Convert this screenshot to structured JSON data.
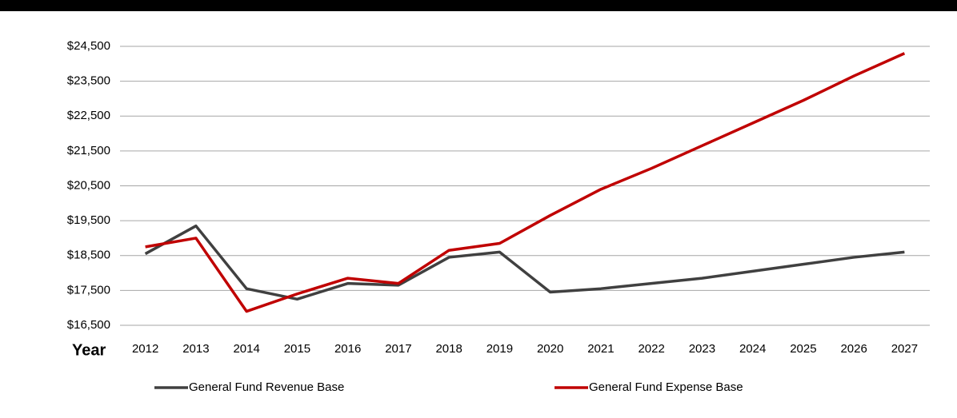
{
  "chart_data": {
    "type": "line",
    "x_label": "Year",
    "categories": [
      "2012",
      "2013",
      "2014",
      "2015",
      "2016",
      "2017",
      "2018",
      "2019",
      "2020",
      "2021",
      "2022",
      "2023",
      "2024",
      "2025",
      "2026",
      "2027"
    ],
    "series": [
      {
        "name": "General Fund Revenue Base",
        "color": "#404040",
        "values": [
          18550,
          19350,
          17550,
          17250,
          17700,
          17650,
          18450,
          18600,
          17450,
          17550,
          17700,
          17850,
          18050,
          18250,
          18450,
          18600
        ]
      },
      {
        "name": "General Fund Expense Base",
        "color": "#c00000",
        "values": [
          18750,
          19000,
          16900,
          17400,
          17850,
          17700,
          18650,
          18850,
          19650,
          20400,
          21000,
          21650,
          22300,
          22950,
          23650,
          24300
        ]
      }
    ],
    "ylim": [
      16500,
      24500
    ],
    "yticks": [
      {
        "value": 16500,
        "label": "$16,500"
      },
      {
        "value": 17500,
        "label": "$17,500"
      },
      {
        "value": 18500,
        "label": "$18,500"
      },
      {
        "value": 19500,
        "label": "$19,500"
      },
      {
        "value": 20500,
        "label": "$20,500"
      },
      {
        "value": 21500,
        "label": "$21,500"
      },
      {
        "value": 22500,
        "label": "$22,500"
      },
      {
        "value": 23500,
        "label": "$23,500"
      },
      {
        "value": 24500,
        "label": "$24,500"
      }
    ],
    "grid": true,
    "legend": "bottom"
  }
}
